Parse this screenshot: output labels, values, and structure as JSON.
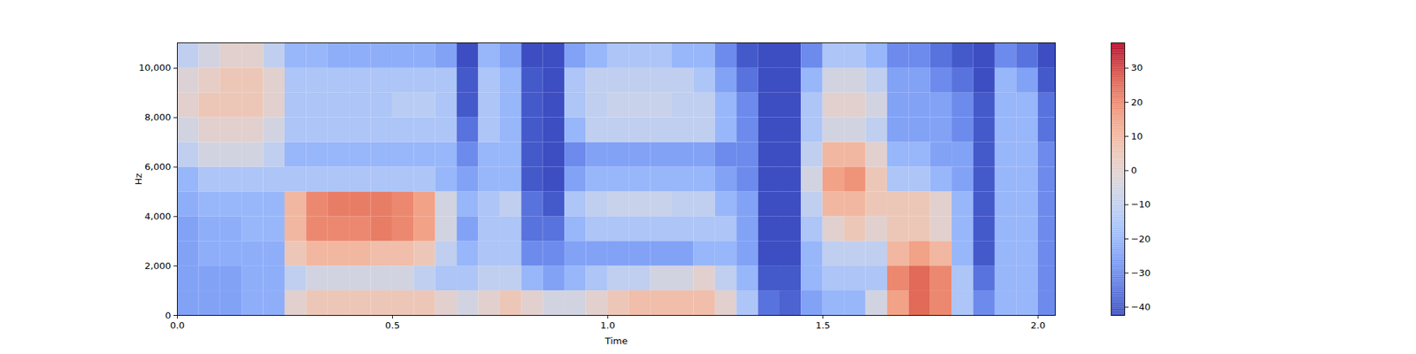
{
  "chart_data": {
    "type": "heatmap",
    "xlabel": "Time",
    "ylabel": "Hz",
    "xlim": [
      0,
      2.04
    ],
    "ylim": [
      0,
      11025
    ],
    "xticks": [
      0,
      0.5,
      1,
      1.5,
      2
    ],
    "yticks": [
      0,
      2000,
      4000,
      6000,
      8000,
      10000
    ],
    "x_bins": [
      0,
      0.05,
      0.1,
      0.15,
      0.2,
      0.25,
      0.3,
      0.35,
      0.4,
      0.45,
      0.5,
      0.55,
      0.6,
      0.65,
      0.7,
      0.75,
      0.8,
      0.85,
      0.9,
      0.95,
      1,
      1.05,
      1.1,
      1.15,
      1.2,
      1.25,
      1.3,
      1.35,
      1.4,
      1.45,
      1.5,
      1.55,
      1.6,
      1.65,
      1.7,
      1.75,
      1.8,
      1.85,
      1.9,
      1.95,
      2,
      2.05
    ],
    "y_bins": [
      0,
      1000,
      2000,
      3000,
      4000,
      5000,
      6000,
      7000,
      8000,
      9000,
      10000,
      11025
    ],
    "values": [
      [
        -25,
        -25,
        -25,
        -25,
        -22,
        -20,
        -10,
        -5,
        0,
        -2,
        -10
      ],
      [
        -25,
        -25,
        -22,
        -22,
        -20,
        -15,
        -5,
        0,
        5,
        2,
        -5
      ],
      [
        -25,
        -25,
        -22,
        -22,
        -20,
        -15,
        -5,
        0,
        5,
        5,
        0
      ],
      [
        -22,
        -22,
        -22,
        -20,
        -20,
        -15,
        -5,
        0,
        5,
        5,
        0
      ],
      [
        -22,
        -22,
        -22,
        -20,
        -20,
        -15,
        -10,
        -5,
        0,
        0,
        -10
      ],
      [
        0,
        -10,
        5,
        10,
        10,
        -15,
        -20,
        -15,
        -15,
        -15,
        -20
      ],
      [
        5,
        -5,
        10,
        20,
        20,
        -15,
        -20,
        -15,
        -15,
        -15,
        -20
      ],
      [
        5,
        -5,
        10,
        20,
        22,
        -15,
        -20,
        -15,
        -15,
        -15,
        -22
      ],
      [
        5,
        -5,
        10,
        20,
        22,
        -15,
        -20,
        -15,
        -15,
        -15,
        -22
      ],
      [
        5,
        -5,
        8,
        22,
        22,
        -15,
        -20,
        -15,
        -15,
        -15,
        -22
      ],
      [
        5,
        -5,
        8,
        20,
        20,
        -15,
        -20,
        -15,
        -12,
        -15,
        -22
      ],
      [
        5,
        -10,
        5,
        15,
        15,
        -15,
        -20,
        -15,
        -12,
        -15,
        -22
      ],
      [
        0,
        -15,
        -10,
        -5,
        -5,
        -20,
        -20,
        -15,
        -15,
        -15,
        -25
      ],
      [
        -5,
        -15,
        -20,
        -25,
        -20,
        -25,
        -30,
        -35,
        -40,
        -40,
        -42
      ],
      [
        0,
        -10,
        -15,
        -15,
        -15,
        -20,
        -20,
        -15,
        -15,
        -15,
        -20
      ],
      [
        5,
        -10,
        -15,
        -15,
        -10,
        -20,
        -20,
        -20,
        -20,
        -20,
        -25
      ],
      [
        0,
        -20,
        -30,
        -35,
        -35,
        -40,
        -40,
        -40,
        -40,
        -40,
        -42
      ],
      [
        -5,
        -25,
        -30,
        -35,
        -40,
        -42,
        -42,
        -42,
        -42,
        -42,
        -42
      ],
      [
        -5,
        -20,
        -25,
        -20,
        -15,
        -25,
        -30,
        -20,
        -15,
        -15,
        -25
      ],
      [
        0,
        -15,
        -25,
        -15,
        -10,
        -20,
        -25,
        -10,
        -10,
        -10,
        -20
      ],
      [
        5,
        -10,
        -25,
        -15,
        -8,
        -20,
        -25,
        -10,
        -8,
        -10,
        -15
      ],
      [
        8,
        -10,
        -25,
        -15,
        -8,
        -20,
        -25,
        -10,
        -8,
        -10,
        -15
      ],
      [
        8,
        -5,
        -25,
        -15,
        -8,
        -20,
        -25,
        -10,
        -8,
        -10,
        -15
      ],
      [
        8,
        -5,
        -25,
        -15,
        -10,
        -20,
        -25,
        -10,
        -10,
        -10,
        -20
      ],
      [
        8,
        0,
        -20,
        -15,
        -10,
        -20,
        -25,
        -10,
        -10,
        -15,
        -20
      ],
      [
        0,
        -10,
        -20,
        -15,
        -20,
        -25,
        -30,
        -20,
        -20,
        -25,
        -30
      ],
      [
        -15,
        -20,
        -25,
        -25,
        -25,
        -30,
        -30,
        -30,
        -30,
        -35,
        -40
      ],
      [
        -35,
        -40,
        -42,
        -42,
        -42,
        -42,
        -42,
        -42,
        -42,
        -42,
        -42
      ],
      [
        -38,
        -40,
        -42,
        -42,
        -42,
        -42,
        -42,
        -42,
        -42,
        -42,
        -42
      ],
      [
        -25,
        -20,
        -20,
        -15,
        -10,
        -5,
        -10,
        -15,
        -15,
        -20,
        -30
      ],
      [
        -20,
        -15,
        -10,
        0,
        10,
        15,
        10,
        -5,
        0,
        -5,
        -15
      ],
      [
        -20,
        -15,
        -10,
        5,
        10,
        18,
        10,
        -5,
        0,
        -5,
        -15
      ],
      [
        -5,
        -15,
        -10,
        0,
        5,
        5,
        0,
        -10,
        -5,
        -10,
        -20
      ],
      [
        15,
        20,
        10,
        5,
        5,
        -15,
        -20,
        -25,
        -25,
        -25,
        -30
      ],
      [
        25,
        25,
        15,
        5,
        5,
        -15,
        -20,
        -25,
        -25,
        -25,
        -30
      ],
      [
        20,
        20,
        10,
        0,
        0,
        -20,
        -25,
        -25,
        -25,
        -30,
        -35
      ],
      [
        -15,
        -15,
        -20,
        -20,
        -20,
        -25,
        -25,
        -30,
        -30,
        -35,
        -40
      ],
      [
        -30,
        -35,
        -40,
        -40,
        -40,
        -40,
        -40,
        -40,
        -40,
        -42,
        -42
      ],
      [
        -20,
        -20,
        -20,
        -20,
        -20,
        -20,
        -20,
        -20,
        -20,
        -20,
        -30
      ],
      [
        -20,
        -20,
        -20,
        -20,
        -20,
        -20,
        -20,
        -20,
        -20,
        -25,
        -35
      ],
      [
        -30,
        -30,
        -30,
        -30,
        -30,
        -30,
        -30,
        -35,
        -35,
        -40,
        -42
      ]
    ],
    "colorbar": {
      "range": [
        -42.4,
        37.4
      ],
      "ticks": [
        -40,
        -30,
        -20,
        -10,
        0,
        10,
        20,
        30
      ]
    }
  }
}
